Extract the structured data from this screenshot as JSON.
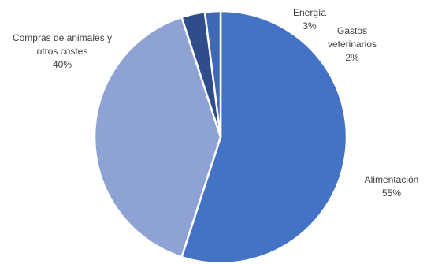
{
  "chart_data": {
    "type": "pie",
    "title": "",
    "start_clock_deg": 0,
    "slices": [
      {
        "label": "Alimentación",
        "value": 55,
        "value_label": "55%",
        "color": "#4472c4"
      },
      {
        "label": "Compras de animales y otros costes",
        "label_lines": [
          "Compras de animales y",
          "otros costes"
        ],
        "value": 40,
        "value_label": "40%",
        "color": "#8fa2d4"
      },
      {
        "label": "Energía",
        "value": 3,
        "value_label": "3%",
        "color": "#2f4d8a"
      },
      {
        "label": "Gastos veterinarios",
        "label_lines": [
          "Gastos",
          "veterinarios"
        ],
        "value": 2,
        "value_label": "2%",
        "color": "#3f68b5"
      }
    ]
  }
}
